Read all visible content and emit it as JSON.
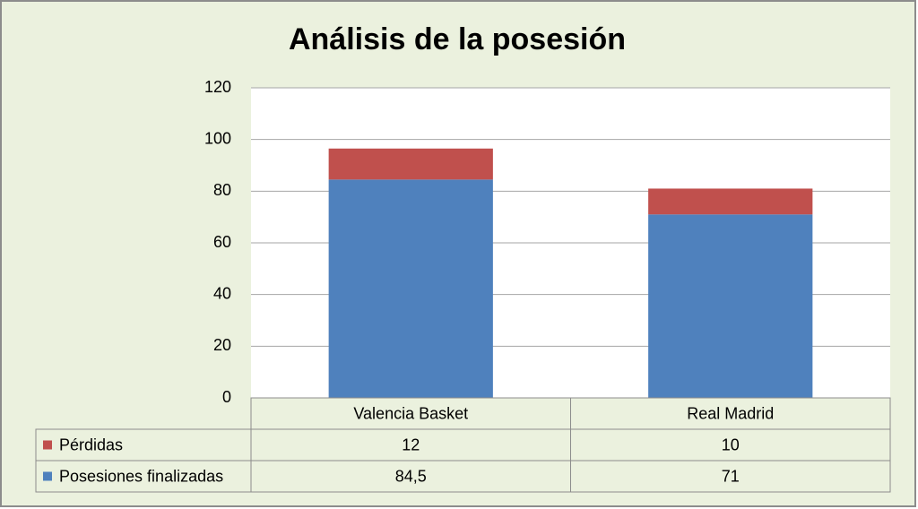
{
  "chart_data": {
    "type": "bar",
    "stacked": true,
    "title": "Análisis de la posesión",
    "categories": [
      "Valencia Basket",
      "Real Madrid"
    ],
    "series": [
      {
        "name": "Posesiones finalizadas",
        "color": "#4f81bd",
        "values": [
          84.5,
          71
        ],
        "value_labels": [
          "84,5",
          "71"
        ]
      },
      {
        "name": "Pérdidas",
        "color": "#c0504d",
        "values": [
          12,
          10
        ]
      }
    ],
    "ylim": [
      0,
      120
    ],
    "yticks": [
      0,
      20,
      40,
      60,
      80,
      100,
      120
    ],
    "grid": true,
    "data_table": true
  }
}
